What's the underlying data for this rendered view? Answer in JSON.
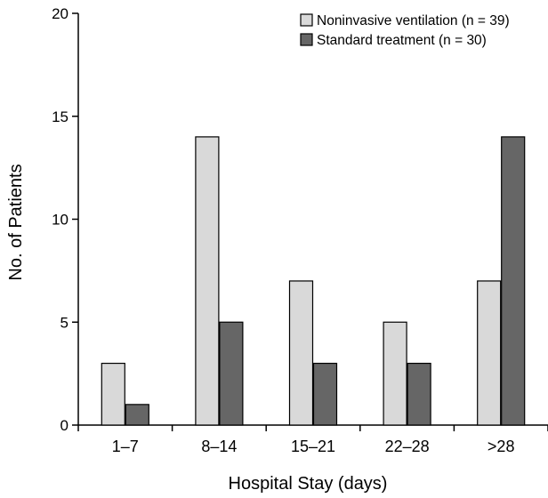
{
  "chart_data": {
    "type": "bar",
    "xlabel": "Hospital Stay (days)",
    "ylabel": "No. of Patients",
    "categories": [
      "1–7",
      "8–14",
      "15–21",
      "22–28",
      ">28"
    ],
    "series": [
      {
        "name": "Noninvasive ventilation (n = 39)",
        "values": [
          3,
          14,
          7,
          5,
          7
        ],
        "color": "#d9d9d9"
      },
      {
        "name": "Standard treatment (n = 30)",
        "values": [
          1,
          5,
          3,
          3,
          14
        ],
        "color": "#666666"
      }
    ],
    "ylim": [
      0,
      20
    ],
    "yticks": [
      0,
      5,
      10,
      15,
      20
    ],
    "grid": false,
    "legend_position": "top-right"
  }
}
